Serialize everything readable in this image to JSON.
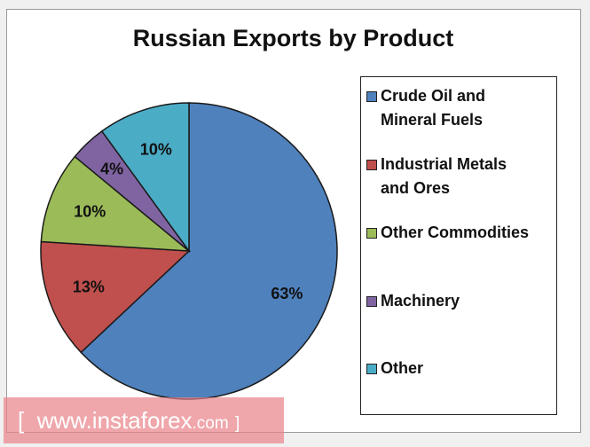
{
  "chart_data": {
    "type": "pie",
    "title": "Russian Exports by Product",
    "start_angle": "12 o'clock, clockwise",
    "legend_position": "right",
    "slices": [
      {
        "label": "Crude Oil and Mineral Fuels",
        "legend_lines": [
          "Crude Oil and",
          "Mineral Fuels"
        ],
        "value": 63,
        "data_label": "63%",
        "color": "#4f81bd"
      },
      {
        "label": "Industrial Metals and Ores",
        "legend_lines": [
          "Industrial Metals",
          "and Ores"
        ],
        "value": 13,
        "data_label": "13%",
        "color": "#c0504d"
      },
      {
        "label": "Other Commodities",
        "legend_lines": [
          "Other Commodities"
        ],
        "value": 10,
        "data_label": "10%",
        "color": "#9bbb59"
      },
      {
        "label": "Machinery",
        "legend_lines": [
          "Machinery"
        ],
        "value": 4,
        "data_label": "4%",
        "color": "#8064a2"
      },
      {
        "label": "Other",
        "legend_lines": [
          "Other"
        ],
        "value": 10,
        "data_label": "10%",
        "color": "#4bacc6"
      }
    ]
  },
  "watermark": {
    "open": "[",
    "main": "www.instaforex",
    "suffix": ".com",
    "close": "]"
  }
}
